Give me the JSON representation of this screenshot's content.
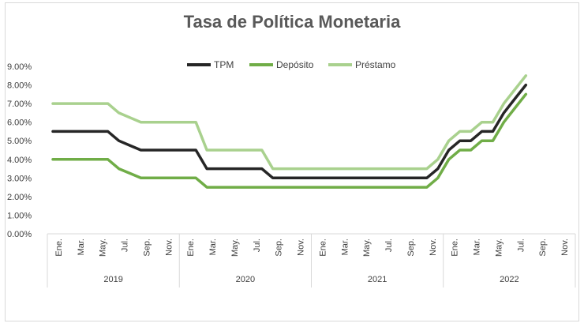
{
  "chart_data": {
    "type": "line",
    "title": "Tasa de Política Monetaria",
    "xlabel": "",
    "ylabel": "",
    "ylim": [
      0,
      9
    ],
    "y_ticks": [
      "0.00%",
      "1.00%",
      "2.00%",
      "3.00%",
      "4.00%",
      "5.00%",
      "6.00%",
      "7.00%",
      "8.00%",
      "9.00%"
    ],
    "grid": false,
    "legend_position": "top",
    "month_tick_labels": [
      "Ene.",
      "Mar.",
      "May.",
      "Jul.",
      "Sep.",
      "Nov.",
      "Ene.",
      "Mar.",
      "May.",
      "Jul.",
      "Sep.",
      "Nov.",
      "Ene.",
      "Mar.",
      "May.",
      "Jul.",
      "Sep.",
      "Nov.",
      "Ene.",
      "Mar.",
      "May.",
      "Jul.",
      "Sep.",
      "Nov."
    ],
    "years": [
      "2019",
      "2020",
      "2021",
      "2022"
    ],
    "x": [
      "2019-01",
      "2019-02",
      "2019-03",
      "2019-04",
      "2019-05",
      "2019-06",
      "2019-07",
      "2019-08",
      "2019-09",
      "2019-10",
      "2019-11",
      "2019-12",
      "2020-01",
      "2020-02",
      "2020-03",
      "2020-04",
      "2020-05",
      "2020-06",
      "2020-07",
      "2020-08",
      "2020-09",
      "2020-10",
      "2020-11",
      "2020-12",
      "2021-01",
      "2021-02",
      "2021-03",
      "2021-04",
      "2021-05",
      "2021-06",
      "2021-07",
      "2021-08",
      "2021-09",
      "2021-10",
      "2021-11",
      "2021-12",
      "2022-01",
      "2022-02",
      "2022-03",
      "2022-04",
      "2022-05",
      "2022-06",
      "2022-07",
      "2022-08"
    ],
    "series": [
      {
        "name": "TPM",
        "color": "#262626",
        "values": [
          5.5,
          5.5,
          5.5,
          5.5,
          5.5,
          5.5,
          5.0,
          4.75,
          4.5,
          4.5,
          4.5,
          4.5,
          4.5,
          4.5,
          3.5,
          3.5,
          3.5,
          3.5,
          3.5,
          3.5,
          3.0,
          3.0,
          3.0,
          3.0,
          3.0,
          3.0,
          3.0,
          3.0,
          3.0,
          3.0,
          3.0,
          3.0,
          3.0,
          3.0,
          3.0,
          3.5,
          4.5,
          5.0,
          5.0,
          5.5,
          5.5,
          6.5,
          7.25,
          8.0
        ]
      },
      {
        "name": "Depósito",
        "color": "#70ad47",
        "values": [
          4.0,
          4.0,
          4.0,
          4.0,
          4.0,
          4.0,
          3.5,
          3.25,
          3.0,
          3.0,
          3.0,
          3.0,
          3.0,
          3.0,
          2.5,
          2.5,
          2.5,
          2.5,
          2.5,
          2.5,
          2.5,
          2.5,
          2.5,
          2.5,
          2.5,
          2.5,
          2.5,
          2.5,
          2.5,
          2.5,
          2.5,
          2.5,
          2.5,
          2.5,
          2.5,
          3.0,
          4.0,
          4.5,
          4.5,
          5.0,
          5.0,
          6.0,
          6.75,
          7.5
        ]
      },
      {
        "name": "Préstamo",
        "color": "#a9d18e",
        "values": [
          7.0,
          7.0,
          7.0,
          7.0,
          7.0,
          7.0,
          6.5,
          6.25,
          6.0,
          6.0,
          6.0,
          6.0,
          6.0,
          6.0,
          4.5,
          4.5,
          4.5,
          4.5,
          4.5,
          4.5,
          3.5,
          3.5,
          3.5,
          3.5,
          3.5,
          3.5,
          3.5,
          3.5,
          3.5,
          3.5,
          3.5,
          3.5,
          3.5,
          3.5,
          3.5,
          4.0,
          5.0,
          5.5,
          5.5,
          6.0,
          6.0,
          7.0,
          7.75,
          8.5
        ]
      }
    ]
  }
}
